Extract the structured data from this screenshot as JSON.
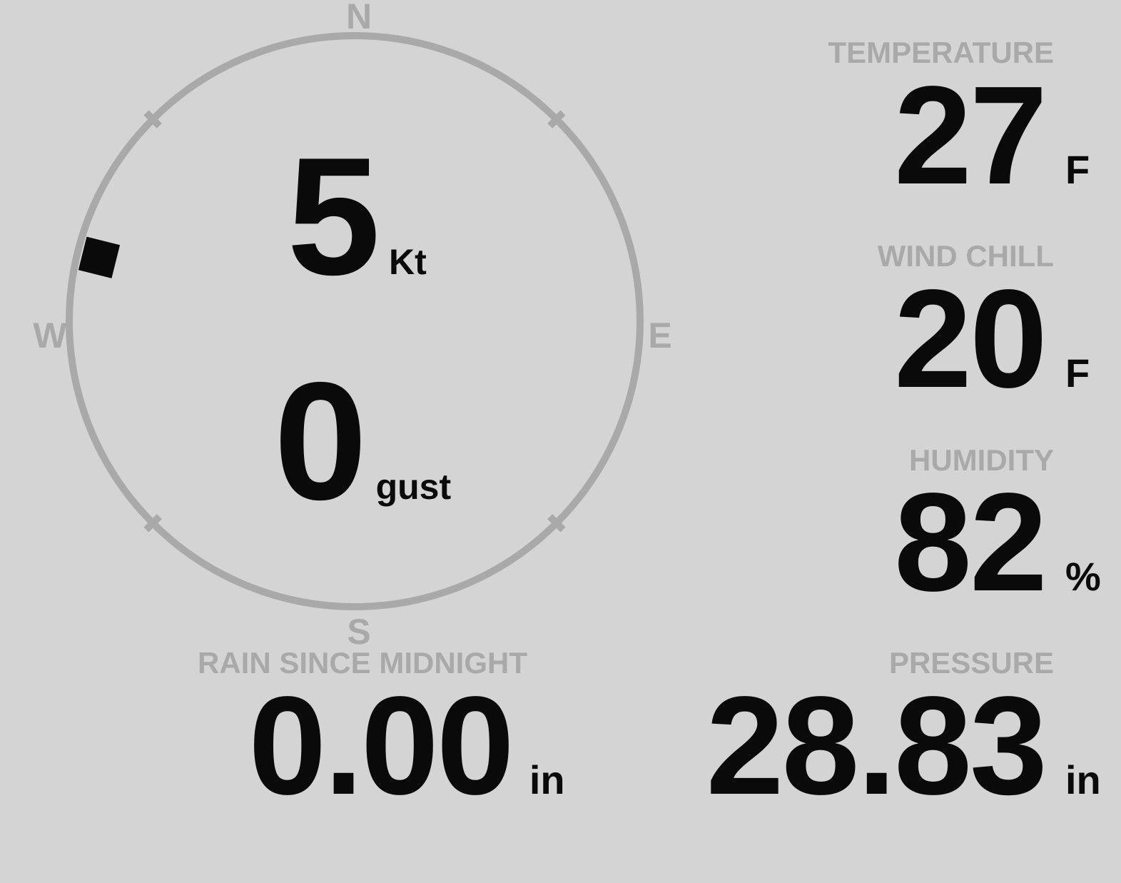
{
  "colors": {
    "background": "#d4d4d4",
    "muted": "#a9a9a9",
    "ink": "#0a0a0a"
  },
  "compass": {
    "direction_deg": 284,
    "cardinals": {
      "north": "N",
      "east": "E",
      "south": "S",
      "west": "W"
    },
    "speed": {
      "value": "5",
      "unit": "Kt"
    },
    "gust": {
      "value": "0",
      "unit": "gust"
    }
  },
  "metrics": {
    "temperature": {
      "label": "TEMPERATURE",
      "value": "27",
      "unit": "F"
    },
    "wind_chill": {
      "label": "WIND CHILL",
      "value": "20",
      "unit": "F"
    },
    "humidity": {
      "label": "HUMIDITY",
      "value": "82",
      "unit": "%"
    },
    "rain_since_midnight": {
      "label": "RAIN SINCE MIDNIGHT",
      "value": "0.00",
      "unit": "in"
    },
    "pressure": {
      "label": "PRESSURE",
      "value": "28.83",
      "unit": "in"
    }
  }
}
